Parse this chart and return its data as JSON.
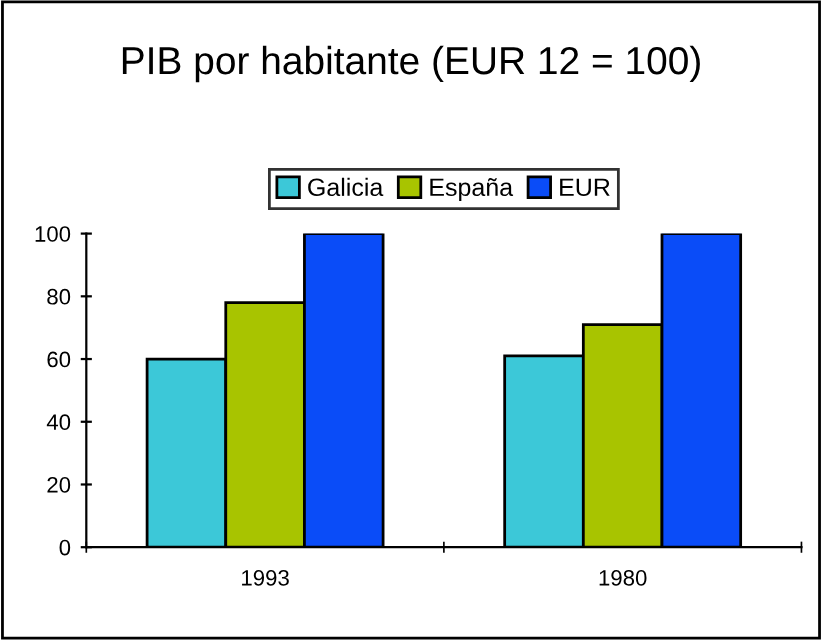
{
  "chart_data": {
    "type": "bar",
    "title": "PIB por habitante (EUR 12 = 100)",
    "categories": [
      "1993",
      "1980"
    ],
    "series": [
      {
        "name": "Galicia",
        "color": "#3cc8d8",
        "values": [
          60,
          61
        ]
      },
      {
        "name": "España",
        "color": "#a8c400",
        "values": [
          78,
          71
        ]
      },
      {
        "name": "EUR",
        "color": "#0a4cf8",
        "values": [
          100,
          100
        ]
      }
    ],
    "ylim": [
      0,
      100
    ],
    "yticks": [
      0,
      20,
      40,
      60,
      80,
      100
    ],
    "grid": false,
    "legend": "top"
  }
}
